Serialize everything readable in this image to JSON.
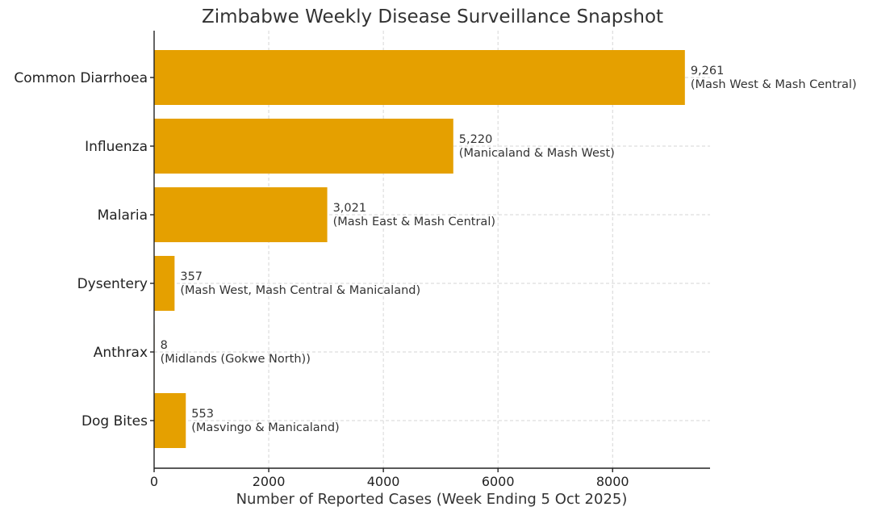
{
  "chart_data": {
    "type": "bar",
    "orientation": "horizontal",
    "title": "Zimbabwe Weekly Disease Surveillance Snapshot",
    "xlabel": "Number of Reported Cases (Week Ending 5 Oct 2025)",
    "ylabel": "",
    "xlim": [
      0,
      9700
    ],
    "x_ticks": [
      0,
      2000,
      4000,
      6000,
      8000
    ],
    "x_tick_labels": [
      "0",
      "2000",
      "4000",
      "6000",
      "8000"
    ],
    "grid": true,
    "bar_color": "#E5A000",
    "categories": [
      "Common Diarrhoea",
      "Influenza",
      "Malaria",
      "Dysentery",
      "Anthrax",
      "Dog Bites"
    ],
    "values": [
      9261,
      5220,
      3021,
      357,
      8,
      553
    ],
    "value_labels": [
      "9,261",
      "5,220",
      "3,021",
      "357",
      "8",
      "553"
    ],
    "region_labels": [
      "(Mash West & Mash Central)",
      "(Manicaland & Mash West)",
      "(Mash East & Mash Central)",
      "(Mash West, Mash Central & Manicaland)",
      "(Midlands (Gokwe North))",
      "(Masvingo & Manicaland)"
    ]
  }
}
